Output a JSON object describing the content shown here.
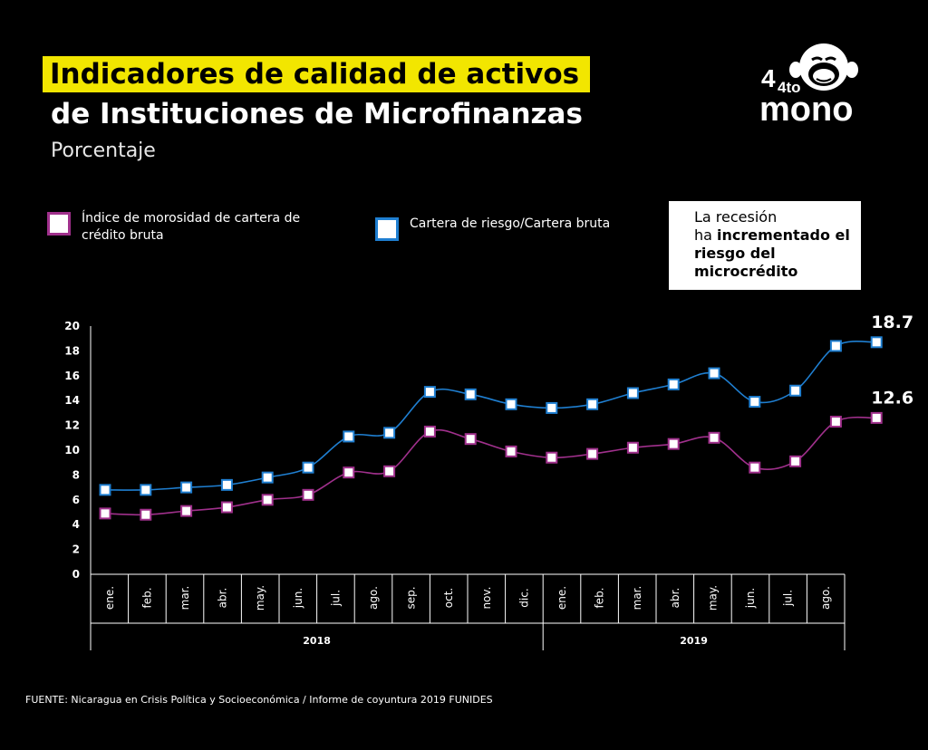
{
  "header": {
    "title_line1": "Indicadores de calidad de activos",
    "title_line2": "de Instituciones de Microfinanzas",
    "subtitle": "Porcentaje"
  },
  "logo": {
    "line1": "4to",
    "line2": "mono"
  },
  "legend": {
    "item1": "Índice de morosidad de cartera de crédito bruta",
    "item2": "Cartera de riesgo/Cartera bruta"
  },
  "callout": {
    "pre": "La recesión",
    "mid": "ha ",
    "bold": "incrementado el riesgo del microcrédito"
  },
  "source": "FUENTE: Nicaragua en Crisis Política y Socioeconómica / Informe de coyuntura 2019 FUNIDES",
  "colors": {
    "accent": "#f2e600",
    "series_morosidad": "#a0308c",
    "series_riesgo": "#1f7fd1"
  },
  "chart_data": {
    "type": "line",
    "categories": [
      "ene.",
      "feb.",
      "mar.",
      "abr.",
      "may.",
      "jun.",
      "jul.",
      "ago.",
      "sep.",
      "oct.",
      "nov.",
      "dic.",
      "ene.",
      "feb.",
      "mar.",
      "abr.",
      "may.",
      "jun.",
      "jul.",
      "ago."
    ],
    "years": [
      {
        "label": "2018",
        "start": 0,
        "end": 11
      },
      {
        "label": "2019",
        "start": 12,
        "end": 19
      }
    ],
    "series": [
      {
        "name": "Índice de morosidad de cartera de crédito bruta",
        "color": "#a0308c",
        "values": [
          4.9,
          4.8,
          5.1,
          5.4,
          6.0,
          6.4,
          8.2,
          8.3,
          11.5,
          10.9,
          9.9,
          9.4,
          9.7,
          10.2,
          10.5,
          11.0,
          8.6,
          9.1,
          12.3,
          12.6
        ],
        "end_label": "12.6"
      },
      {
        "name": "Cartera de riesgo/Cartera bruta",
        "color": "#1f7fd1",
        "values": [
          6.8,
          6.8,
          7.0,
          7.2,
          7.8,
          8.6,
          11.1,
          11.4,
          14.7,
          14.5,
          13.7,
          13.4,
          13.7,
          14.6,
          15.3,
          16.2,
          13.9,
          14.8,
          18.4,
          18.7
        ],
        "end_label": "18.7"
      }
    ],
    "ylim": [
      0,
      20
    ],
    "yticks": [
      0,
      2,
      4,
      6,
      8,
      10,
      12,
      14,
      16,
      18,
      20
    ],
    "grid": false
  }
}
